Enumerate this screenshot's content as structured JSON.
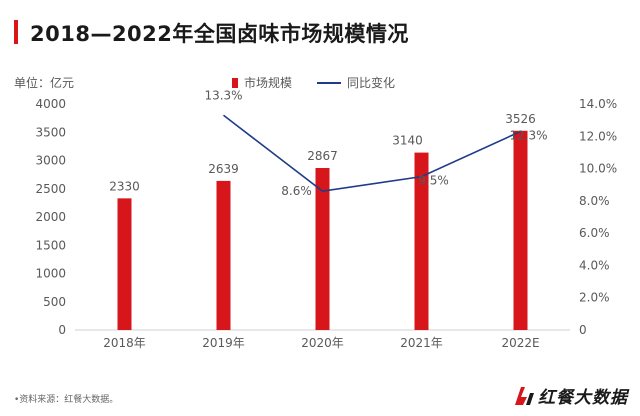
{
  "title": "2018—2022年全国卤味市场规模情况",
  "unit_label": "单位：亿元",
  "legend": {
    "bar": "市场规模",
    "line": "同比变化"
  },
  "source": "•资料来源：红餐大数据。",
  "logo_text": "红餐大数据",
  "colors": {
    "bar": "#d7161b",
    "line": "#1f3c88",
    "accent": "#d7161b"
  },
  "chart_data": {
    "type": "bar",
    "categories": [
      "2018年",
      "2019年",
      "2020年",
      "2021年",
      "2022E"
    ],
    "series": [
      {
        "name": "市场规模",
        "type": "bar",
        "axis": "left",
        "values": [
          2330,
          2639,
          2867,
          3140,
          3526
        ]
      },
      {
        "name": "同比变化",
        "type": "line",
        "axis": "right",
        "values": [
          null,
          13.3,
          8.6,
          9.5,
          12.3
        ]
      }
    ],
    "bar_labels": [
      "2330",
      "2639",
      "2867",
      "3140",
      "3526"
    ],
    "line_labels": [
      "",
      "13.3%",
      "8.6%",
      "9.5%",
      "12.3%"
    ],
    "y_left": {
      "min": 0,
      "max": 4000,
      "step": 500
    },
    "y_right": {
      "min": 0,
      "max": 14,
      "step": 2,
      "suffix": "%"
    },
    "left_ticks": [
      "0",
      "500",
      "1000",
      "1500",
      "2000",
      "2500",
      "3000",
      "3500",
      "4000"
    ],
    "right_ticks": [
      "0",
      "2.0%",
      "4.0%",
      "6.0%",
      "8.0%",
      "10.0%",
      "12.0%",
      "14.0%"
    ],
    "grid": false,
    "legend_position": "top"
  }
}
